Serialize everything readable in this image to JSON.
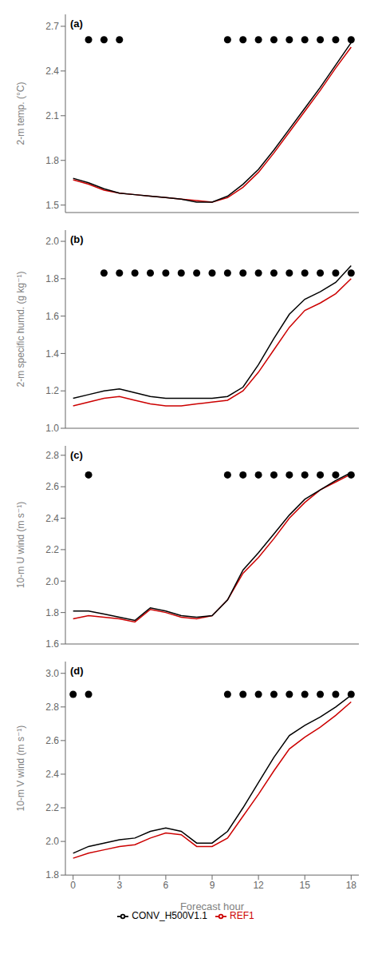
{
  "chart_data": [
    {
      "type": "line",
      "annotations": [
        "(a)"
      ],
      "ylabel": "2-m temp. (°C)",
      "grid": false,
      "tick_labels": "y",
      "x": [
        0,
        1,
        2,
        3,
        4,
        5,
        6,
        7,
        8,
        9,
        10,
        11,
        12,
        13,
        14,
        15,
        16,
        17,
        18
      ],
      "xlim": [
        -0.5,
        18.5
      ],
      "xticks": [
        0,
        3,
        6,
        9,
        12,
        15,
        18
      ],
      "ylim": [
        1.45,
        2.78
      ],
      "yticks": [
        1.5,
        1.8,
        2.1,
        2.4,
        2.7
      ],
      "series": [
        {
          "color": "#cc0000",
          "values": [
            1.67,
            1.64,
            1.6,
            1.58,
            1.57,
            1.56,
            1.55,
            1.54,
            1.53,
            1.52,
            1.55,
            1.62,
            1.72,
            1.85,
            1.99,
            2.13,
            2.27,
            2.42,
            2.56
          ]
        },
        {
          "color": "#000000",
          "values": [
            1.68,
            1.65,
            1.61,
            1.58,
            1.57,
            1.56,
            1.55,
            1.54,
            1.52,
            1.52,
            1.56,
            1.64,
            1.74,
            1.87,
            2.01,
            2.15,
            2.29,
            2.44,
            2.59
          ]
        },
        {
          "type": "scatter",
          "color": "#000000",
          "marker": "circle",
          "x": [
            1,
            2,
            3,
            10,
            11,
            12,
            13,
            14,
            15,
            16,
            17,
            18
          ],
          "values": [
            2.61,
            2.61,
            2.61,
            2.61,
            2.61,
            2.61,
            2.61,
            2.61,
            2.61,
            2.61,
            2.61,
            2.61
          ]
        }
      ]
    },
    {
      "type": "line",
      "annotations": [
        "(b)"
      ],
      "ylabel": "2-m specific humd. (g kg⁻¹)",
      "grid": false,
      "tick_labels": "y",
      "x": [
        0,
        1,
        2,
        3,
        4,
        5,
        6,
        7,
        8,
        9,
        10,
        11,
        12,
        13,
        14,
        15,
        16,
        17,
        18
      ],
      "xlim": [
        -0.5,
        18.5
      ],
      "xticks": [
        0,
        3,
        6,
        9,
        12,
        15,
        18
      ],
      "ylim": [
        1.0,
        2.06
      ],
      "yticks": [
        {
          "value": 1.0,
          "label": "1.0"
        },
        1.2,
        1.4,
        1.6,
        1.8,
        {
          "value": 2.0,
          "label": "2.0"
        }
      ],
      "series": [
        {
          "color": "#cc0000",
          "values": [
            1.12,
            1.14,
            1.16,
            1.17,
            1.15,
            1.13,
            1.12,
            1.12,
            1.13,
            1.14,
            1.15,
            1.2,
            1.3,
            1.42,
            1.54,
            1.63,
            1.67,
            1.72,
            1.8
          ]
        },
        {
          "color": "#000000",
          "values": [
            1.16,
            1.18,
            1.2,
            1.21,
            1.19,
            1.17,
            1.16,
            1.16,
            1.16,
            1.16,
            1.17,
            1.22,
            1.34,
            1.48,
            1.61,
            1.69,
            1.73,
            1.78,
            1.87
          ]
        },
        {
          "type": "scatter",
          "color": "#000000",
          "marker": "circle",
          "x": [
            2,
            3,
            4,
            5,
            6,
            7,
            8,
            9,
            10,
            11,
            12,
            13,
            14,
            15,
            16,
            17,
            18
          ],
          "values": [
            1.83,
            1.83,
            1.83,
            1.83,
            1.83,
            1.83,
            1.83,
            1.83,
            1.83,
            1.83,
            1.83,
            1.83,
            1.83,
            1.83,
            1.83,
            1.83,
            1.83
          ]
        }
      ]
    },
    {
      "type": "line",
      "annotations": [
        "(c)"
      ],
      "ylabel": "10-m U wind (m s⁻¹)",
      "grid": false,
      "tick_labels": "y",
      "x": [
        0,
        1,
        2,
        3,
        4,
        5,
        6,
        7,
        8,
        9,
        10,
        11,
        12,
        13,
        14,
        15,
        16,
        17,
        18
      ],
      "xlim": [
        -0.5,
        18.5
      ],
      "xticks": [
        0,
        3,
        6,
        9,
        12,
        15,
        18
      ],
      "ylim": [
        1.6,
        2.86
      ],
      "yticks": [
        1.6,
        1.8,
        {
          "value": 2.0,
          "label": "2.0"
        },
        2.2,
        2.4,
        2.6,
        2.8
      ],
      "series": [
        {
          "color": "#cc0000",
          "values": [
            1.76,
            1.78,
            1.77,
            1.76,
            1.74,
            1.82,
            1.8,
            1.77,
            1.76,
            1.78,
            1.88,
            2.05,
            2.15,
            2.27,
            2.4,
            2.5,
            2.58,
            2.63,
            2.68
          ]
        },
        {
          "color": "#000000",
          "values": [
            1.81,
            1.81,
            1.79,
            1.77,
            1.75,
            1.83,
            1.81,
            1.78,
            1.77,
            1.78,
            1.88,
            2.07,
            2.18,
            2.3,
            2.42,
            2.52,
            2.58,
            2.64,
            2.69
          ]
        },
        {
          "type": "scatter",
          "color": "#000000",
          "marker": "circle",
          "x": [
            1,
            10,
            11,
            12,
            13,
            14,
            15,
            16,
            17,
            18
          ],
          "values": [
            2.675,
            2.675,
            2.675,
            2.675,
            2.675,
            2.675,
            2.675,
            2.675,
            2.675,
            2.675
          ]
        }
      ]
    },
    {
      "type": "line",
      "annotations": [
        "(d)"
      ],
      "ylabel": "10-m V wind (m s⁻¹)",
      "xlabel": "Forecast hour",
      "grid": false,
      "legend": "bottom",
      "x": [
        0,
        1,
        2,
        3,
        4,
        5,
        6,
        7,
        8,
        9,
        10,
        11,
        12,
        13,
        14,
        15,
        16,
        17,
        18
      ],
      "xlim": [
        -0.5,
        18.5
      ],
      "xticks": [
        0,
        3,
        6,
        9,
        12,
        15,
        18
      ],
      "ylim": [
        1.8,
        3.07
      ],
      "yticks": [
        1.8,
        {
          "value": 2.0,
          "label": "2.0"
        },
        2.2,
        2.4,
        2.6,
        2.8,
        {
          "value": 3.0,
          "label": "3.0"
        }
      ],
      "series": [
        {
          "name": "REF1",
          "color": "#cc0000",
          "values": [
            1.9,
            1.93,
            1.95,
            1.97,
            1.98,
            2.02,
            2.05,
            2.04,
            1.97,
            1.97,
            2.02,
            2.15,
            2.28,
            2.42,
            2.55,
            2.62,
            2.68,
            2.75,
            2.83
          ]
        },
        {
          "name": "CONV_H500V1.1",
          "color": "#000000",
          "values": [
            1.93,
            1.97,
            1.99,
            2.01,
            2.02,
            2.06,
            2.08,
            2.06,
            1.99,
            1.99,
            2.06,
            2.2,
            2.35,
            2.5,
            2.63,
            2.69,
            2.74,
            2.8,
            2.87
          ]
        },
        {
          "type": "scatter",
          "color": "#000000",
          "marker": "circle",
          "x": [
            0,
            1,
            10,
            11,
            12,
            13,
            14,
            15,
            16,
            17,
            18
          ],
          "values": [
            2.875,
            2.875,
            2.875,
            2.875,
            2.875,
            2.875,
            2.875,
            2.875,
            2.875,
            2.875,
            2.875
          ]
        }
      ]
    }
  ]
}
